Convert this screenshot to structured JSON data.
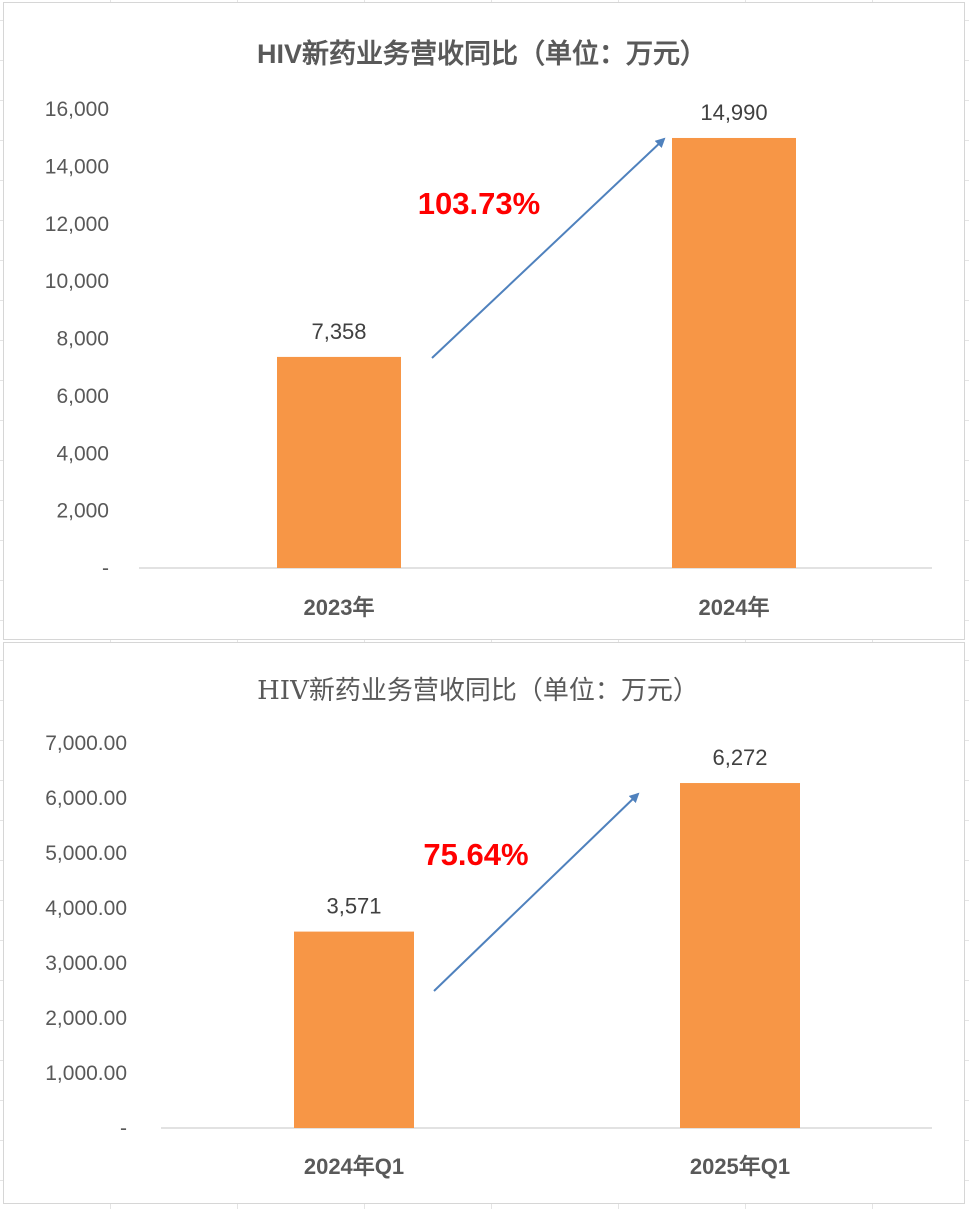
{
  "chart_data": [
    {
      "type": "bar",
      "title": "HIV新药业务营收同比（单位：万元）",
      "categories": [
        "2023年",
        "2024年"
      ],
      "values": [
        7358,
        14990
      ],
      "data_labels": [
        "7,358",
        "14,990"
      ],
      "ylim": [
        0,
        16000
      ],
      "y_ticks": [
        0,
        2000,
        4000,
        6000,
        8000,
        10000,
        12000,
        14000,
        16000
      ],
      "y_tick_labels": [
        "-",
        "2,000",
        "4,000",
        "6,000",
        "8,000",
        "10,000",
        "12,000",
        "14,000",
        "16,000"
      ],
      "annotation": "103.73%",
      "bar_color": "#f79646",
      "arrow_color": "#4f81bd",
      "annotation_color": "#ff0000",
      "grid": false
    },
    {
      "type": "bar",
      "title": "HIV新药业务营收同比（单位：万元）",
      "categories": [
        "2024年Q1",
        "2025年Q1"
      ],
      "values": [
        3571,
        6272
      ],
      "data_labels": [
        "3,571",
        "6,272"
      ],
      "ylim": [
        0,
        7000
      ],
      "y_ticks": [
        0,
        1000,
        2000,
        3000,
        4000,
        5000,
        6000,
        7000
      ],
      "y_tick_labels": [
        "-",
        "1,000.00",
        "2,000.00",
        "3,000.00",
        "4,000.00",
        "5,000.00",
        "6,000.00",
        "7,000.00"
      ],
      "annotation": "75.64%",
      "bar_color": "#f79646",
      "arrow_color": "#4f81bd",
      "annotation_color": "#ff0000",
      "grid": false
    }
  ]
}
